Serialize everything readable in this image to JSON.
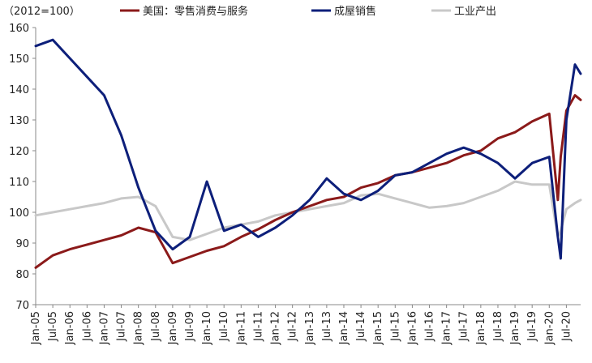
{
  "chart_data": {
    "type": "line",
    "unit_label": "（2012=100）",
    "ylim": [
      70,
      160
    ],
    "y_ticks": [
      70,
      80,
      90,
      100,
      110,
      120,
      130,
      140,
      150,
      160
    ],
    "x_tick_labels": [
      "Jan-05",
      "Jul-05",
      "Jan-06",
      "Jul-06",
      "Jan-07",
      "Jul-07",
      "Jan-08",
      "Jul-08",
      "Jan-09",
      "Jul-09",
      "Jan-10",
      "Jul-10",
      "Jan-11",
      "Jul-11",
      "Jan-12",
      "Jul-12",
      "Jan-13",
      "Jul-13",
      "Jan-14",
      "Jul-14",
      "Jan-15",
      "Jul-15",
      "Jan-16",
      "Jul-16",
      "Jan-17",
      "Jul-17",
      "Jan-18",
      "Jul-18",
      "Jan-19",
      "Jul-19",
      "Jan-20",
      "Jul-20"
    ],
    "grid": false,
    "legend_position": "top",
    "series": [
      {
        "name": "美国：零售消费与服务",
        "color": "#8b1a1a",
        "points": [
          [
            "Jan-05",
            82
          ],
          [
            "Jul-05",
            86
          ],
          [
            "Jan-06",
            88
          ],
          [
            "Jul-06",
            89.5
          ],
          [
            "Jan-07",
            91
          ],
          [
            "Jul-07",
            92.5
          ],
          [
            "Jan-08",
            95
          ],
          [
            "Jul-08",
            93.5
          ],
          [
            "Jan-09",
            83.5
          ],
          [
            "Jul-09",
            85.5
          ],
          [
            "Jan-10",
            87.5
          ],
          [
            "Jul-10",
            89
          ],
          [
            "Jan-11",
            92
          ],
          [
            "Jul-11",
            94.5
          ],
          [
            "Jan-12",
            97.5
          ],
          [
            "Jul-12",
            100
          ],
          [
            "Jan-13",
            102
          ],
          [
            "Jul-13",
            104
          ],
          [
            "Jan-14",
            105
          ],
          [
            "Jul-14",
            108
          ],
          [
            "Jan-15",
            109.5
          ],
          [
            "Jul-15",
            112
          ],
          [
            "Jan-16",
            113
          ],
          [
            "Jul-16",
            114.5
          ],
          [
            "Jan-17",
            116
          ],
          [
            "Jul-17",
            118.5
          ],
          [
            "Jan-18",
            120
          ],
          [
            "Jul-18",
            124
          ],
          [
            "Jan-19",
            126
          ],
          [
            "Jul-19",
            129.5
          ],
          [
            "Jan-20",
            132
          ],
          [
            "Apr-20",
            104
          ],
          [
            "May-20",
            118
          ],
          [
            "Jul-20",
            133
          ],
          [
            "Oct-20",
            138
          ],
          [
            "Dec-20",
            136.5
          ]
        ]
      },
      {
        "name": "成屋销售",
        "color": "#0d1f7a",
        "points": [
          [
            "Jan-05",
            154
          ],
          [
            "Jul-05",
            156
          ],
          [
            "Jan-06",
            150
          ],
          [
            "Jul-06",
            144
          ],
          [
            "Jan-07",
            138
          ],
          [
            "Jul-07",
            125
          ],
          [
            "Jan-08",
            108
          ],
          [
            "Jul-08",
            94
          ],
          [
            "Jan-09",
            88
          ],
          [
            "Jul-09",
            92
          ],
          [
            "Jan-10",
            110
          ],
          [
            "Jul-10",
            94
          ],
          [
            "Jan-11",
            96
          ],
          [
            "Jul-11",
            92
          ],
          [
            "Jan-12",
            95
          ],
          [
            "Jul-12",
            99
          ],
          [
            "Jan-13",
            104
          ],
          [
            "Jul-13",
            111
          ],
          [
            "Jan-14",
            106
          ],
          [
            "Jul-14",
            104
          ],
          [
            "Jan-15",
            107
          ],
          [
            "Jul-15",
            112
          ],
          [
            "Jan-16",
            113
          ],
          [
            "Jul-16",
            116
          ],
          [
            "Jan-17",
            119
          ],
          [
            "Jul-17",
            121
          ],
          [
            "Jan-18",
            119
          ],
          [
            "Jul-18",
            116
          ],
          [
            "Jan-19",
            111
          ],
          [
            "Jul-19",
            116
          ],
          [
            "Jan-20",
            118
          ],
          [
            "Apr-20",
            92
          ],
          [
            "May-20",
            85
          ],
          [
            "Jul-20",
            130
          ],
          [
            "Oct-20",
            148
          ],
          [
            "Dec-20",
            145
          ]
        ]
      },
      {
        "name": "工业产出",
        "color": "#c8c8c8",
        "points": [
          [
            "Jan-05",
            99
          ],
          [
            "Jul-05",
            100
          ],
          [
            "Jan-06",
            101
          ],
          [
            "Jul-06",
            102
          ],
          [
            "Jan-07",
            103
          ],
          [
            "Jul-07",
            104.5
          ],
          [
            "Jan-08",
            105
          ],
          [
            "Jul-08",
            102
          ],
          [
            "Jan-09",
            92
          ],
          [
            "Jul-09",
            91
          ],
          [
            "Jan-10",
            93
          ],
          [
            "Jul-10",
            95
          ],
          [
            "Jan-11",
            96
          ],
          [
            "Jul-11",
            97
          ],
          [
            "Jan-12",
            99
          ],
          [
            "Jul-12",
            100
          ],
          [
            "Jan-13",
            101
          ],
          [
            "Jul-13",
            102
          ],
          [
            "Jan-14",
            103
          ],
          [
            "Jul-14",
            105.5
          ],
          [
            "Jan-15",
            106
          ],
          [
            "Jul-15",
            104.5
          ],
          [
            "Jan-16",
            103
          ],
          [
            "Jul-16",
            101.5
          ],
          [
            "Jan-17",
            102
          ],
          [
            "Jul-17",
            103
          ],
          [
            "Jan-18",
            105
          ],
          [
            "Jul-18",
            107
          ],
          [
            "Jan-19",
            110
          ],
          [
            "Jul-19",
            109
          ],
          [
            "Jan-20",
            109
          ],
          [
            "Apr-20",
            92
          ],
          [
            "May-20",
            94
          ],
          [
            "Jul-20",
            101
          ],
          [
            "Oct-20",
            103
          ],
          [
            "Dec-20",
            104
          ]
        ]
      }
    ]
  }
}
